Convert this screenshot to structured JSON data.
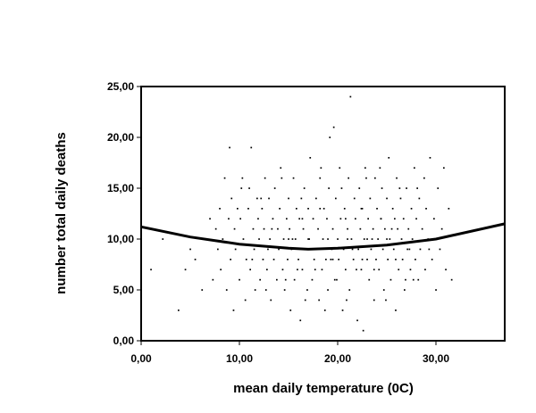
{
  "chart_data": {
    "type": "scatter",
    "xlabel": "mean daily temperature (0C)",
    "ylabel": "number total daily deaths",
    "xlim": [
      0,
      37
    ],
    "ylim": [
      0,
      25
    ],
    "x_ticks": [
      0,
      10,
      20,
      30
    ],
    "y_ticks": [
      0,
      5,
      10,
      15,
      20,
      25
    ],
    "x_tick_labels": [
      "0,00",
      "10,00",
      "20,00",
      "30,00"
    ],
    "y_tick_labels": [
      "0,00",
      "5,00",
      "10,00",
      "15,00",
      "20,00",
      "25,00"
    ],
    "grid": false,
    "legend": "none",
    "marker_color": "#000000",
    "fit_line": {
      "type": "quadratic",
      "color": "#000000",
      "x": [
        0,
        5,
        10,
        15,
        17,
        20,
        25,
        30,
        37
      ],
      "y": [
        11.2,
        10.2,
        9.5,
        9.1,
        9.0,
        9.1,
        9.4,
        10.0,
        11.5
      ]
    },
    "points": [
      [
        1.0,
        7
      ],
      [
        2.2,
        10
      ],
      [
        3.8,
        3
      ],
      [
        4.5,
        7
      ],
      [
        5.0,
        9
      ],
      [
        5.5,
        8
      ],
      [
        6.2,
        5
      ],
      [
        6.5,
        10
      ],
      [
        7.0,
        12
      ],
      [
        7.3,
        6
      ],
      [
        7.6,
        11
      ],
      [
        7.8,
        9
      ],
      [
        8.0,
        13
      ],
      [
        8.1,
        7
      ],
      [
        8.3,
        10
      ],
      [
        8.5,
        16
      ],
      [
        8.7,
        5
      ],
      [
        8.9,
        12
      ],
      [
        9.0,
        19
      ],
      [
        9.1,
        8
      ],
      [
        9.2,
        14
      ],
      [
        9.4,
        3
      ],
      [
        9.5,
        11
      ],
      [
        9.6,
        9
      ],
      [
        9.8,
        13
      ],
      [
        10.0,
        6
      ],
      [
        10.1,
        12
      ],
      [
        10.3,
        16
      ],
      [
        10.4,
        10
      ],
      [
        10.6,
        4
      ],
      [
        10.7,
        8
      ],
      [
        10.9,
        13
      ],
      [
        11.0,
        15
      ],
      [
        11.1,
        7
      ],
      [
        11.2,
        19
      ],
      [
        11.4,
        11
      ],
      [
        11.5,
        9
      ],
      [
        11.6,
        5
      ],
      [
        11.8,
        14
      ],
      [
        11.9,
        12
      ],
      [
        12.0,
        10
      ],
      [
        12.1,
        6
      ],
      [
        12.3,
        13
      ],
      [
        12.4,
        8
      ],
      [
        12.5,
        11
      ],
      [
        12.6,
        16
      ],
      [
        12.8,
        7
      ],
      [
        12.9,
        9
      ],
      [
        13.0,
        14
      ],
      [
        13.1,
        10
      ],
      [
        13.2,
        4
      ],
      [
        13.4,
        12
      ],
      [
        13.5,
        8
      ],
      [
        13.6,
        15
      ],
      [
        13.8,
        6
      ],
      [
        13.9,
        11
      ],
      [
        14.0,
        9
      ],
      [
        14.1,
        13
      ],
      [
        14.2,
        17
      ],
      [
        14.4,
        7
      ],
      [
        14.5,
        10
      ],
      [
        14.6,
        5
      ],
      [
        14.8,
        12
      ],
      [
        14.9,
        8
      ],
      [
        15.0,
        14
      ],
      [
        15.1,
        11
      ],
      [
        15.2,
        3
      ],
      [
        15.3,
        9
      ],
      [
        15.5,
        16
      ],
      [
        15.6,
        6
      ],
      [
        15.7,
        10
      ],
      [
        15.8,
        13
      ],
      [
        16.0,
        8
      ],
      [
        16.1,
        12
      ],
      [
        16.2,
        2
      ],
      [
        16.4,
        7
      ],
      [
        16.5,
        11
      ],
      [
        16.6,
        15
      ],
      [
        16.8,
        9
      ],
      [
        16.9,
        5
      ],
      [
        17.0,
        13
      ],
      [
        17.1,
        10
      ],
      [
        17.2,
        18
      ],
      [
        17.4,
        6
      ],
      [
        17.5,
        12
      ],
      [
        17.6,
        8
      ],
      [
        17.8,
        14
      ],
      [
        17.9,
        9
      ],
      [
        18.0,
        11
      ],
      [
        18.1,
        4
      ],
      [
        18.2,
        16
      ],
      [
        18.4,
        7
      ],
      [
        18.5,
        10
      ],
      [
        18.6,
        13
      ],
      [
        18.8,
        8
      ],
      [
        18.9,
        12
      ],
      [
        19.0,
        5
      ],
      [
        19.1,
        15
      ],
      [
        19.2,
        20
      ],
      [
        19.4,
        9
      ],
      [
        19.5,
        11
      ],
      [
        19.6,
        21
      ],
      [
        19.7,
        6
      ],
      [
        19.8,
        14
      ],
      [
        20.0,
        10
      ],
      [
        20.1,
        8
      ],
      [
        20.2,
        17
      ],
      [
        20.3,
        12
      ],
      [
        20.5,
        3
      ],
      [
        20.6,
        9
      ],
      [
        20.7,
        13
      ],
      [
        20.8,
        7
      ],
      [
        21.0,
        11
      ],
      [
        21.1,
        16
      ],
      [
        21.2,
        5
      ],
      [
        21.3,
        24
      ],
      [
        21.4,
        10
      ],
      [
        21.6,
        8
      ],
      [
        21.7,
        14
      ],
      [
        21.8,
        12
      ],
      [
        22.0,
        2
      ],
      [
        22.1,
        9
      ],
      [
        22.2,
        15
      ],
      [
        22.3,
        11
      ],
      [
        22.4,
        7
      ],
      [
        22.5,
        13
      ],
      [
        22.6,
        1
      ],
      [
        22.7,
        10
      ],
      [
        22.8,
        17
      ],
      [
        23.0,
        8
      ],
      [
        23.1,
        12
      ],
      [
        23.2,
        6
      ],
      [
        23.3,
        14
      ],
      [
        23.4,
        9
      ],
      [
        23.6,
        11
      ],
      [
        23.7,
        4
      ],
      [
        23.8,
        16
      ],
      [
        23.9,
        8
      ],
      [
        24.0,
        13
      ],
      [
        24.1,
        10
      ],
      [
        24.2,
        7
      ],
      [
        24.4,
        12
      ],
      [
        24.5,
        15
      ],
      [
        24.6,
        9
      ],
      [
        24.7,
        5
      ],
      [
        24.8,
        11
      ],
      [
        25.0,
        14
      ],
      [
        25.1,
        8
      ],
      [
        25.2,
        18
      ],
      [
        25.3,
        10
      ],
      [
        25.4,
        6
      ],
      [
        25.6,
        13
      ],
      [
        25.7,
        9
      ],
      [
        25.8,
        12
      ],
      [
        25.9,
        3
      ],
      [
        26.0,
        16
      ],
      [
        26.1,
        11
      ],
      [
        26.2,
        7
      ],
      [
        26.4,
        14
      ],
      [
        26.5,
        10
      ],
      [
        26.6,
        8
      ],
      [
        26.7,
        12
      ],
      [
        26.8,
        5
      ],
      [
        27.0,
        15
      ],
      [
        27.1,
        9
      ],
      [
        27.2,
        11
      ],
      [
        27.4,
        7
      ],
      [
        27.5,
        13
      ],
      [
        27.6,
        10
      ],
      [
        27.8,
        17
      ],
      [
        27.9,
        8
      ],
      [
        28.0,
        12
      ],
      [
        28.2,
        6
      ],
      [
        28.3,
        14
      ],
      [
        28.4,
        9
      ],
      [
        28.6,
        11
      ],
      [
        28.8,
        16
      ],
      [
        28.9,
        7
      ],
      [
        29.0,
        13
      ],
      [
        29.2,
        10
      ],
      [
        29.4,
        18
      ],
      [
        29.6,
        8
      ],
      [
        29.8,
        12
      ],
      [
        30.0,
        5
      ],
      [
        30.2,
        15
      ],
      [
        30.4,
        9
      ],
      [
        30.6,
        11
      ],
      [
        30.8,
        17
      ],
      [
        31.0,
        7
      ],
      [
        31.3,
        13
      ],
      [
        31.6,
        6
      ],
      [
        10.2,
        15
      ],
      [
        12.2,
        14
      ],
      [
        14.3,
        16
      ],
      [
        16.3,
        14
      ],
      [
        18.3,
        17
      ],
      [
        20.4,
        15
      ],
      [
        22.9,
        16
      ],
      [
        24.3,
        17
      ],
      [
        26.3,
        15
      ],
      [
        28.1,
        15
      ],
      [
        13.3,
        11
      ],
      [
        15.4,
        10
      ],
      [
        17.3,
        9
      ],
      [
        19.3,
        8
      ],
      [
        21.5,
        9
      ],
      [
        23.5,
        10
      ],
      [
        25.5,
        11
      ],
      [
        27.3,
        9
      ],
      [
        29.3,
        9
      ],
      [
        11.3,
        8
      ],
      [
        15.9,
        7
      ],
      [
        17.7,
        7
      ],
      [
        19.9,
        6
      ],
      [
        21.9,
        7
      ],
      [
        23.7,
        7
      ],
      [
        25.9,
        8
      ],
      [
        27.7,
        6
      ],
      [
        12.7,
        5
      ],
      [
        16.7,
        4
      ],
      [
        18.7,
        3
      ],
      [
        20.9,
        4
      ],
      [
        24.9,
        4
      ],
      [
        26.9,
        6
      ],
      [
        14.7,
        6
      ],
      [
        18.2,
        13
      ],
      [
        20.8,
        12
      ],
      [
        22.4,
        13
      ],
      [
        16.4,
        12
      ],
      [
        24.4,
        12
      ],
      [
        19.0,
        10
      ],
      [
        21.0,
        10
      ],
      [
        17.0,
        10
      ],
      [
        23.0,
        10
      ],
      [
        15.0,
        10
      ],
      [
        25.0,
        10
      ],
      [
        19.5,
        8
      ],
      [
        22.5,
        8
      ]
    ]
  }
}
